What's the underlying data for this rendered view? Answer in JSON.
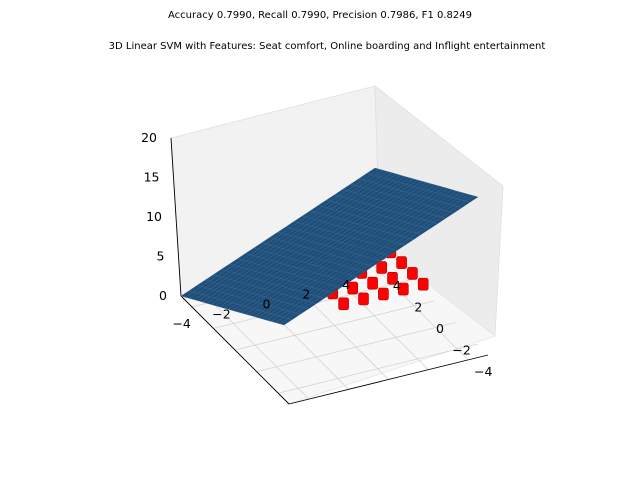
{
  "figure": {
    "metrics_line": "Accuracy 0.7990, Recall 0.7990, Precision 0.7986, F1 0.8249",
    "title": "3D Linear SVM with Features: Seat comfort, Online boarding and Inflight entertainment"
  },
  "chart_data": {
    "type": "surface3d",
    "title": "3D Linear SVM with Features: Seat comfort, Online boarding and Inflight entertainment",
    "xlabel": "",
    "ylabel": "",
    "zlabel": "",
    "x_ticks": [
      "4",
      "2",
      "0",
      "−2",
      "−4"
    ],
    "y_ticks": [
      "−4",
      "−2",
      "0",
      "2",
      "4"
    ],
    "z_ticks": [
      "0",
      "5",
      "10",
      "15",
      "20"
    ],
    "xlim": [
      -5,
      5
    ],
    "ylim": [
      -5,
      5
    ],
    "zlim": [
      0,
      20
    ],
    "plane": {
      "z_at_x_min_y_min": 20,
      "z_at_x_max_y_max": 0
    },
    "surface_color": "#1f4e79",
    "points_color": "#ff0000",
    "scatter_points": [
      {
        "x": 1,
        "y": 1,
        "z": 0
      },
      {
        "x": 2,
        "y": 1,
        "z": 0
      },
      {
        "x": 3,
        "y": 1,
        "z": 0
      },
      {
        "x": 1,
        "y": 2,
        "z": 0
      },
      {
        "x": 2,
        "y": 2,
        "z": 0
      },
      {
        "x": 3,
        "y": 2,
        "z": 0
      },
      {
        "x": 1,
        "y": 3,
        "z": 0
      },
      {
        "x": 2,
        "y": 3,
        "z": 0
      },
      {
        "x": 3,
        "y": 3,
        "z": 0
      },
      {
        "x": 1,
        "y": 4,
        "z": 0
      },
      {
        "x": 2,
        "y": 4,
        "z": 0
      },
      {
        "x": 3,
        "y": 4,
        "z": 0
      },
      {
        "x": 4,
        "y": 1,
        "z": 0
      },
      {
        "x": 4,
        "y": 2,
        "z": 0
      },
      {
        "x": 4,
        "y": 3,
        "z": 0
      },
      {
        "x": 4,
        "y": 4,
        "z": 0
      },
      {
        "x": 5,
        "y": 1,
        "z": 0
      },
      {
        "x": 5,
        "y": 2,
        "z": 0
      },
      {
        "x": 5,
        "y": 3,
        "z": 0
      },
      {
        "x": 5,
        "y": 4,
        "z": 0
      },
      {
        "x": 1,
        "y": 5,
        "z": 0
      },
      {
        "x": 2,
        "y": 5,
        "z": 0
      },
      {
        "x": 3,
        "y": 5,
        "z": 0
      },
      {
        "x": 4,
        "y": 5,
        "z": 0
      },
      {
        "x": 5,
        "y": 5,
        "z": 0
      }
    ]
  }
}
